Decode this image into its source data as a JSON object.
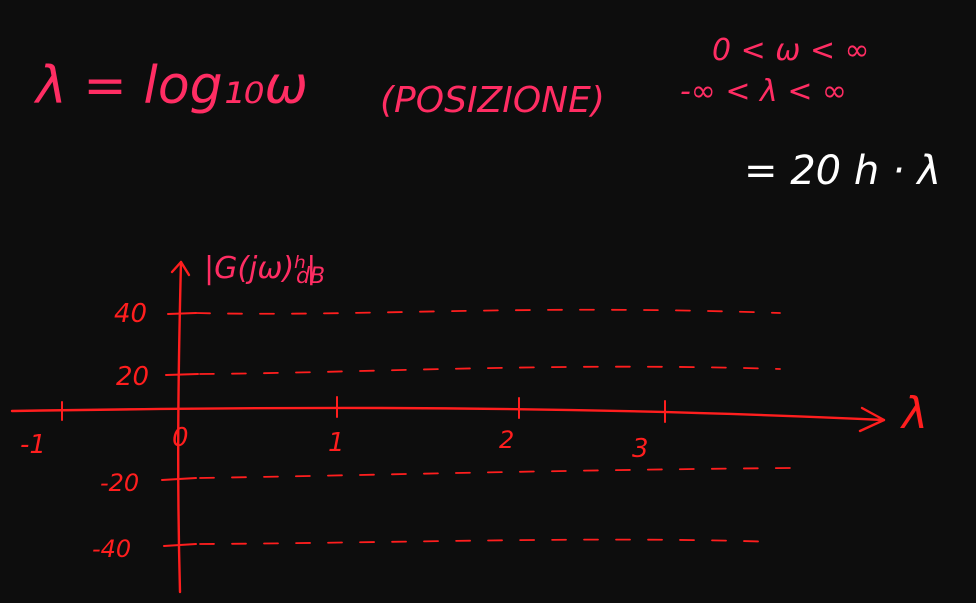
{
  "equations": {
    "definition": "λ = log₁₀ω",
    "note": "(POSIZIONE)",
    "omega_range": "0 < ω < ∞",
    "lambda_range": "-∞ < λ < ∞",
    "white_formula": "= 20 h · λ"
  },
  "plot": {
    "y_label_main": "|G(jω)ʰ|",
    "y_label_sub": "dB",
    "x_label": "λ",
    "x_tick_labels": [
      "-1",
      "0",
      "1",
      "2",
      "3"
    ],
    "y_tick_labels": [
      "40",
      "20",
      "-20",
      "-40"
    ]
  },
  "colors": {
    "ink_pink": "#ff2d63",
    "ink_red": "#ff1e1e",
    "ink_white": "#ffffff",
    "background": "#0d0d0d"
  }
}
